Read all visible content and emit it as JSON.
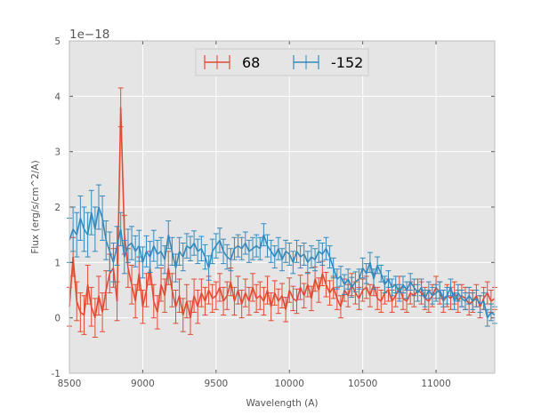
{
  "chart_data": {
    "type": "line",
    "title": "",
    "xlabel": "Wavelength (A)",
    "ylabel": "Flux (erg/s/cm^2/A)",
    "y_offset_label": "1e−18",
    "xlim": [
      8500,
      11400
    ],
    "ylim": [
      -1,
      5
    ],
    "xticks": [
      8500,
      9000,
      9500,
      10000,
      10500,
      11000
    ],
    "yticks": [
      -1,
      0,
      1,
      2,
      3,
      4,
      5
    ],
    "grid": true,
    "legend_position": "top-center",
    "colors": {
      "plot_background": "#e5e5e5",
      "grid": "#ffffff",
      "axis_text": "#555555",
      "series_68": "#e24a33",
      "series_neg152": "#348abd"
    },
    "series": [
      {
        "name": "68",
        "color": "#e24a33",
        "x": [
          8500,
          8525,
          8550,
          8575,
          8600,
          8625,
          8650,
          8675,
          8700,
          8725,
          8750,
          8775,
          8800,
          8825,
          8850,
          8875,
          8900,
          8925,
          8950,
          8975,
          9000,
          9025,
          9050,
          9075,
          9100,
          9125,
          9150,
          9175,
          9200,
          9225,
          9250,
          9275,
          9300,
          9325,
          9350,
          9375,
          9400,
          9425,
          9450,
          9475,
          9500,
          9525,
          9550,
          9575,
          9600,
          9625,
          9650,
          9675,
          9700,
          9725,
          9750,
          9775,
          9800,
          9825,
          9850,
          9875,
          9900,
          9925,
          9950,
          9975,
          10000,
          10025,
          10050,
          10075,
          10100,
          10125,
          10150,
          10175,
          10200,
          10225,
          10250,
          10275,
          10300,
          10325,
          10350,
          10375,
          10400,
          10425,
          10450,
          10475,
          10500,
          10525,
          10550,
          10575,
          10600,
          10625,
          10650,
          10675,
          10700,
          10725,
          10750,
          10775,
          10800,
          10825,
          10850,
          10875,
          10900,
          10925,
          10950,
          10975,
          11000,
          11025,
          11050,
          11075,
          11100,
          11125,
          11150,
          11175,
          11200,
          11225,
          11250,
          11275,
          11300,
          11325,
          11350,
          11375,
          11400
        ],
        "y": [
          0.2,
          1.1,
          0.3,
          0.1,
          0.05,
          0.6,
          0.2,
          0.0,
          0.4,
          0.1,
          0.5,
          0.8,
          0.9,
          0.3,
          3.8,
          1.5,
          0.9,
          0.6,
          0.3,
          0.8,
          0.2,
          0.5,
          0.9,
          0.3,
          0.1,
          0.6,
          0.4,
          0.9,
          0.5,
          0.2,
          0.4,
          0.05,
          0.3,
          0.0,
          0.4,
          0.2,
          0.45,
          0.3,
          0.5,
          0.35,
          0.4,
          0.55,
          0.3,
          0.4,
          0.65,
          0.3,
          0.5,
          0.25,
          0.45,
          0.3,
          0.55,
          0.35,
          0.4,
          0.3,
          0.5,
          0.2,
          0.45,
          0.3,
          0.4,
          0.15,
          0.5,
          0.35,
          0.3,
          0.55,
          0.4,
          0.6,
          0.35,
          0.7,
          0.5,
          0.8,
          0.6,
          0.45,
          0.55,
          0.35,
          0.2,
          0.5,
          0.4,
          0.6,
          0.45,
          0.35,
          0.5,
          0.55,
          0.4,
          0.6,
          0.35,
          0.3,
          0.45,
          0.5,
          0.3,
          0.4,
          0.55,
          0.35,
          0.3,
          0.45,
          0.4,
          0.5,
          0.45,
          0.35,
          0.3,
          0.4,
          0.55,
          0.45,
          0.3,
          0.4,
          0.35,
          0.45,
          0.3,
          0.4,
          0.35,
          0.25,
          0.3,
          0.4,
          0.2,
          0.35,
          0.45,
          0.3,
          0.35
        ],
        "err": [
          0.35,
          0.35,
          0.35,
          0.35,
          0.35,
          0.35,
          0.35,
          0.35,
          0.35,
          0.35,
          0.35,
          0.35,
          0.35,
          0.35,
          0.35,
          0.35,
          0.35,
          0.35,
          0.3,
          0.3,
          0.3,
          0.3,
          0.3,
          0.3,
          0.3,
          0.3,
          0.3,
          0.3,
          0.3,
          0.3,
          0.3,
          0.3,
          0.3,
          0.3,
          0.3,
          0.3,
          0.25,
          0.25,
          0.25,
          0.25,
          0.25,
          0.25,
          0.25,
          0.25,
          0.25,
          0.25,
          0.25,
          0.25,
          0.25,
          0.25,
          0.25,
          0.25,
          0.25,
          0.25,
          0.25,
          0.25,
          0.22,
          0.22,
          0.22,
          0.22,
          0.22,
          0.22,
          0.22,
          0.22,
          0.22,
          0.22,
          0.22,
          0.22,
          0.22,
          0.22,
          0.22,
          0.22,
          0.2,
          0.2,
          0.2,
          0.2,
          0.2,
          0.2,
          0.2,
          0.2,
          0.2,
          0.2,
          0.2,
          0.2,
          0.2,
          0.2,
          0.2,
          0.2,
          0.2,
          0.2,
          0.2,
          0.2,
          0.2,
          0.2,
          0.2,
          0.2,
          0.2,
          0.2,
          0.2,
          0.2,
          0.2,
          0.2,
          0.2,
          0.2,
          0.2,
          0.2,
          0.2,
          0.2,
          0.2,
          0.2,
          0.2,
          0.2,
          0.2,
          0.2,
          0.2,
          0.2,
          0.2
        ]
      },
      {
        "name": "-152",
        "color": "#348abd",
        "x": [
          8500,
          8525,
          8550,
          8575,
          8600,
          8625,
          8650,
          8675,
          8700,
          8725,
          8750,
          8775,
          8800,
          8825,
          8850,
          8875,
          8900,
          8925,
          8950,
          8975,
          9000,
          9025,
          9050,
          9075,
          9100,
          9125,
          9150,
          9175,
          9200,
          9225,
          9250,
          9275,
          9300,
          9325,
          9350,
          9375,
          9400,
          9425,
          9450,
          9475,
          9500,
          9525,
          9550,
          9575,
          9600,
          9625,
          9650,
          9675,
          9700,
          9725,
          9750,
          9775,
          9800,
          9825,
          9850,
          9875,
          9900,
          9925,
          9950,
          9975,
          10000,
          10025,
          10050,
          10075,
          10100,
          10125,
          10150,
          10175,
          10200,
          10225,
          10250,
          10275,
          10300,
          10325,
          10350,
          10375,
          10400,
          10425,
          10450,
          10475,
          10500,
          10525,
          10550,
          10575,
          10600,
          10625,
          10650,
          10675,
          10700,
          10725,
          10750,
          10775,
          10800,
          10825,
          10850,
          10875,
          10900,
          10925,
          10950,
          10975,
          11000,
          11025,
          11050,
          11075,
          11100,
          11125,
          11150,
          11175,
          11200,
          11225,
          11250,
          11275,
          11300,
          11325,
          11350,
          11375,
          11400
        ],
        "y": [
          1.4,
          1.6,
          1.5,
          1.8,
          1.6,
          1.5,
          1.9,
          1.6,
          2.0,
          1.8,
          1.4,
          1.2,
          1.0,
          1.3,
          1.6,
          1.1,
          1.3,
          1.35,
          1.2,
          1.3,
          1.0,
          1.2,
          1.1,
          1.3,
          1.15,
          1.2,
          1.05,
          1.5,
          1.2,
          0.9,
          1.2,
          1.1,
          1.3,
          1.25,
          1.35,
          1.2,
          1.25,
          1.1,
          0.9,
          1.2,
          1.3,
          1.4,
          1.2,
          1.1,
          1.05,
          1.25,
          1.3,
          1.25,
          1.35,
          1.2,
          1.25,
          1.3,
          1.25,
          1.5,
          1.3,
          1.2,
          1.1,
          1.25,
          1.05,
          1.2,
          1.15,
          1.0,
          1.2,
          1.1,
          1.15,
          1.0,
          1.1,
          1.05,
          1.2,
          1.15,
          1.25,
          1.1,
          0.9,
          0.7,
          0.75,
          0.6,
          0.7,
          0.55,
          0.65,
          0.7,
          0.9,
          0.8,
          1.0,
          0.7,
          0.95,
          0.8,
          0.6,
          0.7,
          0.55,
          0.6,
          0.45,
          0.6,
          0.5,
          0.65,
          0.55,
          0.45,
          0.55,
          0.35,
          0.5,
          0.4,
          0.45,
          0.5,
          0.35,
          0.4,
          0.55,
          0.3,
          0.45,
          0.35,
          0.3,
          0.4,
          0.3,
          0.35,
          0.25,
          0.3,
          0.0,
          0.1,
          0.05
        ],
        "err": [
          0.4,
          0.4,
          0.4,
          0.4,
          0.4,
          0.4,
          0.4,
          0.4,
          0.4,
          0.4,
          0.35,
          0.35,
          0.35,
          0.35,
          0.3,
          0.3,
          0.3,
          0.3,
          0.28,
          0.28,
          0.28,
          0.28,
          0.28,
          0.28,
          0.25,
          0.25,
          0.25,
          0.25,
          0.25,
          0.25,
          0.25,
          0.25,
          0.22,
          0.22,
          0.22,
          0.22,
          0.22,
          0.22,
          0.22,
          0.22,
          0.22,
          0.22,
          0.22,
          0.22,
          0.2,
          0.2,
          0.2,
          0.2,
          0.2,
          0.2,
          0.2,
          0.2,
          0.2,
          0.2,
          0.2,
          0.2,
          0.2,
          0.2,
          0.2,
          0.2,
          0.2,
          0.2,
          0.2,
          0.2,
          0.2,
          0.2,
          0.2,
          0.2,
          0.2,
          0.2,
          0.2,
          0.2,
          0.18,
          0.18,
          0.18,
          0.18,
          0.18,
          0.18,
          0.18,
          0.18,
          0.18,
          0.18,
          0.18,
          0.18,
          0.15,
          0.15,
          0.15,
          0.15,
          0.15,
          0.15,
          0.15,
          0.15,
          0.15,
          0.15,
          0.15,
          0.15,
          0.15,
          0.15,
          0.15,
          0.15,
          0.15,
          0.15,
          0.15,
          0.15,
          0.15,
          0.15,
          0.15,
          0.15,
          0.15,
          0.15,
          0.15,
          0.15,
          0.15,
          0.15,
          0.15,
          0.15,
          0.15
        ]
      }
    ]
  }
}
